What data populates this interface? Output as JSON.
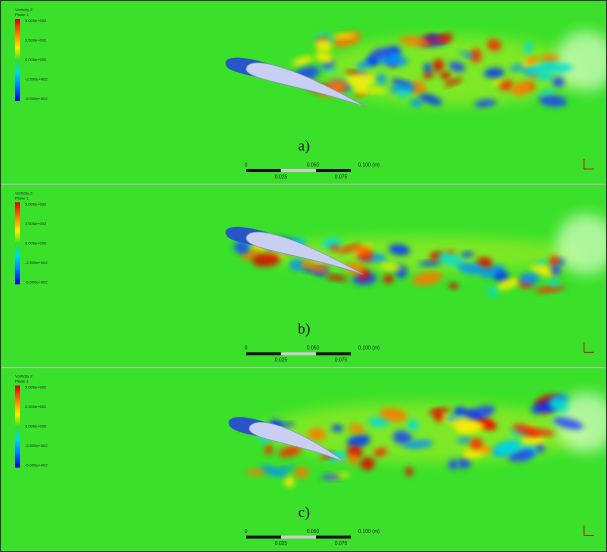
{
  "panels": [
    {
      "label": "a)",
      "legend": {
        "title": "Vorticity Z",
        "subtitle": "Plane 1",
        "ticks": [
          "5.000e+002",
          "2.500e+002",
          "0.000e+000",
          "-2.500e+002",
          "-5.000e+002"
        ]
      },
      "scale": {
        "top": [
          "0",
          "0.050",
          "0.100 (m)"
        ],
        "bottom": [
          "0.025",
          "0.075"
        ]
      }
    },
    {
      "label": "b)",
      "legend": {
        "title": "Vorticity Z",
        "subtitle": "Plane 1",
        "ticks": [
          "5.000e+002",
          "2.500e+002",
          "0.000e+000",
          "-2.500e+002",
          "-5.000e+002"
        ]
      },
      "scale": {
        "top": [
          "0",
          "0.050",
          "0.100 (m)"
        ],
        "bottom": [
          "0.025",
          "0.075"
        ]
      }
    },
    {
      "label": "c)",
      "legend": {
        "title": "Vorticity Z",
        "subtitle": "Plane 1",
        "ticks": [
          "5.000e+002",
          "2.500e+002",
          "0.000e+000",
          "-2.500e+002",
          "-5.000e+002"
        ]
      },
      "scale": {
        "top": [
          "0",
          "0.050",
          "0.100 (m)"
        ],
        "bottom": [
          "0.025",
          "0.075"
        ]
      }
    }
  ]
}
